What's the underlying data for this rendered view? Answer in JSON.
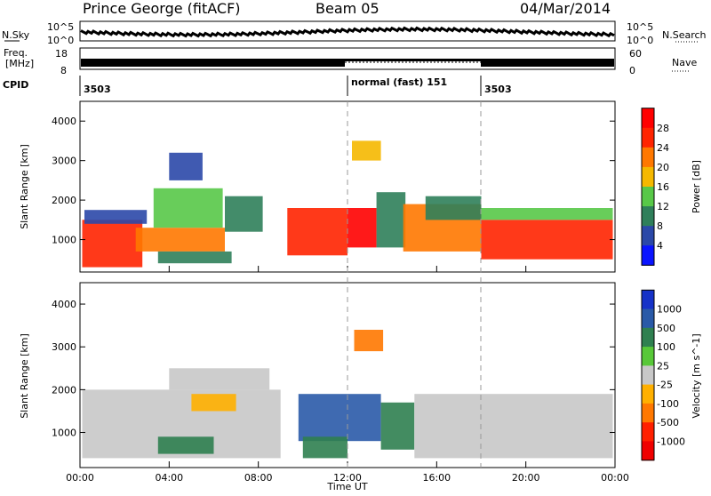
{
  "header": {
    "station": "Prince George (fitACF)",
    "beam": "Beam 05",
    "date": "04/Mar/2014"
  },
  "top_panels": {
    "nsky_label": "N.Sky",
    "nsky_ticks": [
      "10^5",
      "10^0"
    ],
    "nsearch_label": "N.Search",
    "nsearch_ticks": [
      "10^5",
      "10^0"
    ],
    "freq_label_line1": "Freq.",
    "freq_label_line2": "[MHz]",
    "freq_ticks": [
      "18",
      "8"
    ],
    "nave_label": "Nave",
    "nave_ticks": [
      "60",
      "0"
    ],
    "cpid_label": "CPID",
    "cpid_segments": [
      {
        "label": "3503",
        "start_hour": 0
      },
      {
        "label": "normal (fast) 151",
        "start_hour": 12
      },
      {
        "label": "3503",
        "start_hour": 18
      }
    ]
  },
  "chart_data": [
    {
      "type": "heatmap",
      "panel": "power",
      "ylabel": "Slant Range [km]",
      "xlabel": "",
      "ylim": [
        180,
        4500
      ],
      "yticks": [
        1000,
        2000,
        3000,
        4000
      ],
      "xlim": [
        0,
        24
      ],
      "colorbar_label": "Power [dB]",
      "colorbar_ticks": [
        "4",
        "8",
        "12",
        "16",
        "20",
        "24",
        "28"
      ],
      "colorbar_colors": [
        "#0a14ff",
        "#2b48a8",
        "#2f7f5a",
        "#58c848",
        "#f5b800",
        "#ff7800",
        "#ff2400",
        "#ff0000"
      ],
      "regions": [
        {
          "t0": 0.1,
          "t1": 2.8,
          "r0": 300,
          "r1": 1500,
          "level": 24
        },
        {
          "t0": 0.2,
          "t1": 3.0,
          "r0": 1400,
          "r1": 1750,
          "level": 6
        },
        {
          "t0": 2.5,
          "t1": 6.5,
          "r0": 700,
          "r1": 1300,
          "level": 20
        },
        {
          "t0": 3.3,
          "t1": 6.4,
          "r0": 1300,
          "r1": 2300,
          "level": 14
        },
        {
          "t0": 3.5,
          "t1": 6.8,
          "r0": 400,
          "r1": 700,
          "level": 10
        },
        {
          "t0": 4.0,
          "t1": 5.5,
          "r0": 2500,
          "r1": 3200,
          "level": 6
        },
        {
          "t0": 6.5,
          "t1": 8.2,
          "r0": 1200,
          "r1": 2100,
          "level": 8
        },
        {
          "t0": 9.3,
          "t1": 12.0,
          "r0": 600,
          "r1": 1800,
          "level": 26
        },
        {
          "t0": 12.0,
          "t1": 13.3,
          "r0": 800,
          "r1": 1800,
          "level": 28
        },
        {
          "t0": 13.3,
          "t1": 14.6,
          "r0": 800,
          "r1": 2200,
          "level": 8
        },
        {
          "t0": 12.2,
          "t1": 13.5,
          "r0": 3000,
          "r1": 3500,
          "level": 18
        },
        {
          "t0": 14.5,
          "t1": 18.0,
          "r0": 700,
          "r1": 1900,
          "level": 20
        },
        {
          "t0": 15.5,
          "t1": 18.0,
          "r0": 1500,
          "r1": 2100,
          "level": 8
        },
        {
          "t0": 18.0,
          "t1": 23.9,
          "r0": 500,
          "r1": 1500,
          "level": 26
        },
        {
          "t0": 18.0,
          "t1": 23.9,
          "r0": 1500,
          "r1": 1800,
          "level": 14
        }
      ]
    },
    {
      "type": "heatmap",
      "panel": "velocity",
      "ylabel": "Slant Range [km]",
      "xlabel": "Time UT",
      "ylim": [
        180,
        4500
      ],
      "yticks": [
        1000,
        2000,
        3000,
        4000
      ],
      "xlim": [
        0,
        24
      ],
      "xticks": [
        "00:00",
        "04:00",
        "08:00",
        "12:00",
        "16:00",
        "20:00",
        "00:00"
      ],
      "colorbar_label": "Velocity [m s^-1]",
      "colorbar_ticks": [
        "1000",
        "500",
        "100",
        "25",
        "-25",
        "-100",
        "-500",
        "-1000"
      ],
      "colorbar_colors": [
        "#1632c8",
        "#2a5aa8",
        "#2f8050",
        "#58c838",
        "#c8c8c8",
        "#ffb000",
        "#ff7800",
        "#ff2000",
        "#f00000"
      ],
      "regions": [
        {
          "t0": 0.1,
          "t1": 9.0,
          "r0": 400,
          "r1": 2000,
          "level": 0
        },
        {
          "t0": 4.0,
          "t1": 8.5,
          "r0": 2000,
          "r1": 2500,
          "level": 0
        },
        {
          "t0": 3.5,
          "t1": 6.0,
          "r0": 500,
          "r1": 900,
          "level": 100
        },
        {
          "t0": 5.0,
          "t1": 7.0,
          "r0": 1500,
          "r1": 1900,
          "level": -100
        },
        {
          "t0": 9.8,
          "t1": 13.5,
          "r0": 800,
          "r1": 1900,
          "level": 500
        },
        {
          "t0": 10.0,
          "t1": 12.0,
          "r0": 400,
          "r1": 900,
          "level": 100
        },
        {
          "t0": 13.5,
          "t1": 15.0,
          "r0": 600,
          "r1": 1700,
          "level": 100
        },
        {
          "t0": 12.3,
          "t1": 13.6,
          "r0": 2900,
          "r1": 3400,
          "level": -300
        },
        {
          "t0": 15.0,
          "t1": 23.9,
          "r0": 400,
          "r1": 1900,
          "level": 0
        }
      ]
    }
  ]
}
